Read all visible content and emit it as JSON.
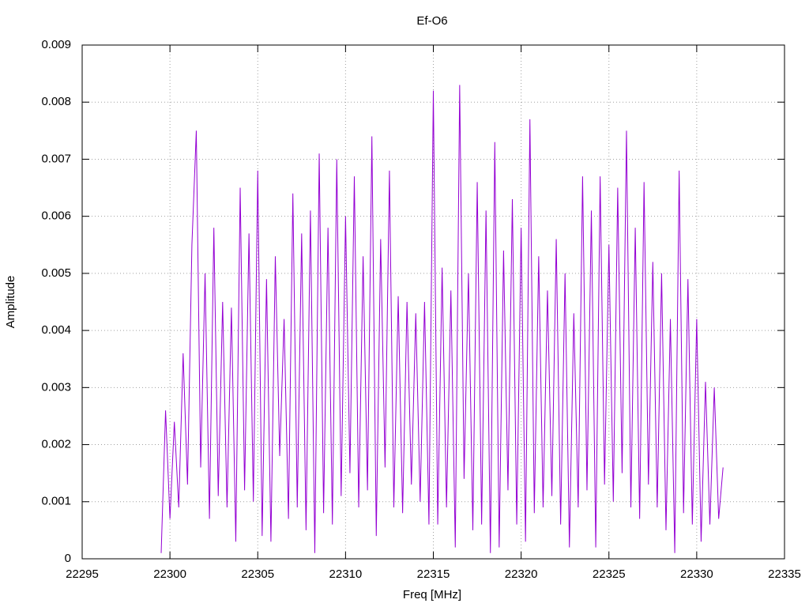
{
  "chart_data": {
    "type": "line",
    "title": "Ef-O6",
    "xlabel": "Freq [MHz]",
    "ylabel": "Amplitude",
    "x": [
      22299.5,
      22299.75,
      22300,
      22300.25,
      22300.5,
      22300.75,
      22301,
      22301.25,
      22301.5,
      22301.75,
      22302,
      22302.25,
      22302.5,
      22302.75,
      22303,
      22303.25,
      22303.5,
      22303.75,
      22304,
      22304.25,
      22304.5,
      22304.75,
      22305,
      22305.25,
      22305.5,
      22305.75,
      22306,
      22306.25,
      22306.5,
      22306.75,
      22307,
      22307.25,
      22307.5,
      22307.75,
      22308,
      22308.25,
      22308.5,
      22308.75,
      22309,
      22309.25,
      22309.5,
      22309.75,
      22310,
      22310.25,
      22310.5,
      22310.75,
      22311,
      22311.25,
      22311.5,
      22311.75,
      22312,
      22312.25,
      22312.5,
      22312.75,
      22313,
      22313.25,
      22313.5,
      22313.75,
      22314,
      22314.25,
      22314.5,
      22314.75,
      22315,
      22315.25,
      22315.5,
      22315.75,
      22316,
      22316.25,
      22316.5,
      22316.75,
      22317,
      22317.25,
      22317.5,
      22317.75,
      22318,
      22318.25,
      22318.5,
      22318.75,
      22319,
      22319.25,
      22319.5,
      22319.75,
      22320,
      22320.25,
      22320.5,
      22320.75,
      22321,
      22321.25,
      22321.5,
      22321.75,
      22322,
      22322.25,
      22322.5,
      22322.75,
      22323,
      22323.25,
      22323.5,
      22323.75,
      22324,
      22324.25,
      22324.5,
      22324.75,
      22325,
      22325.25,
      22325.5,
      22325.75,
      22326,
      22326.25,
      22326.5,
      22326.75,
      22327,
      22327.25,
      22327.5,
      22327.75,
      22328,
      22328.25,
      22328.5,
      22328.75,
      22329,
      22329.25,
      22329.5,
      22329.75,
      22330,
      22330.25,
      22330.5,
      22330.75,
      22331,
      22331.25,
      22331.5
    ],
    "values": [
      0.0001,
      0.0026,
      0.0007,
      0.0024,
      0.0009,
      0.0036,
      0.0013,
      0.0055,
      0.0075,
      0.0016,
      0.005,
      0.0007,
      0.0058,
      0.0011,
      0.0045,
      0.0009,
      0.0044,
      0.0003,
      0.0065,
      0.0012,
      0.0057,
      0.001,
      0.0068,
      0.0004,
      0.0049,
      0.0003,
      0.0053,
      0.0018,
      0.0042,
      0.0007,
      0.0064,
      0.0009,
      0.0057,
      0.0005,
      0.0061,
      0.0001,
      0.0071,
      0.0008,
      0.0058,
      0.0006,
      0.007,
      0.0011,
      0.006,
      0.0015,
      0.0067,
      0.0009,
      0.0053,
      0.0012,
      0.0074,
      0.0004,
      0.0056,
      0.0016,
      0.0068,
      0.0009,
      0.0046,
      0.0008,
      0.0045,
      0.0013,
      0.0043,
      0.001,
      0.0045,
      0.0006,
      0.0082,
      0.0006,
      0.0051,
      0.0009,
      0.0047,
      0.0002,
      0.0083,
      0.0014,
      0.005,
      0.0005,
      0.0066,
      0.0006,
      0.0061,
      0.0001,
      0.0073,
      0.0002,
      0.0054,
      0.0012,
      0.0063,
      0.0006,
      0.0058,
      0.0003,
      0.0077,
      0.0008,
      0.0053,
      0.0009,
      0.0047,
      0.0011,
      0.0056,
      0.0006,
      0.005,
      0.0002,
      0.0043,
      0.0009,
      0.0067,
      0.0012,
      0.0061,
      0.0002,
      0.0067,
      0.0013,
      0.0055,
      0.001,
      0.0065,
      0.0015,
      0.0075,
      0.0009,
      0.0058,
      0.0007,
      0.0066,
      0.0013,
      0.0052,
      0.0009,
      0.005,
      0.0005,
      0.0042,
      0.0001,
      0.0068,
      0.0008,
      0.0049,
      0.0006,
      0.0042,
      0.0003,
      0.0031,
      0.0006,
      0.003,
      0.0007,
      0.0016
    ],
    "color": "#9400d3",
    "xlim": [
      22295,
      22335
    ],
    "xticks": [
      22295,
      22300,
      22305,
      22310,
      22315,
      22320,
      22325,
      22330,
      22335
    ],
    "ylim": [
      0,
      0.009
    ],
    "yticks": [
      0,
      0.001,
      0.002,
      0.003,
      0.004,
      0.005,
      0.006,
      0.007,
      0.008,
      0.009
    ],
    "grid": true
  }
}
